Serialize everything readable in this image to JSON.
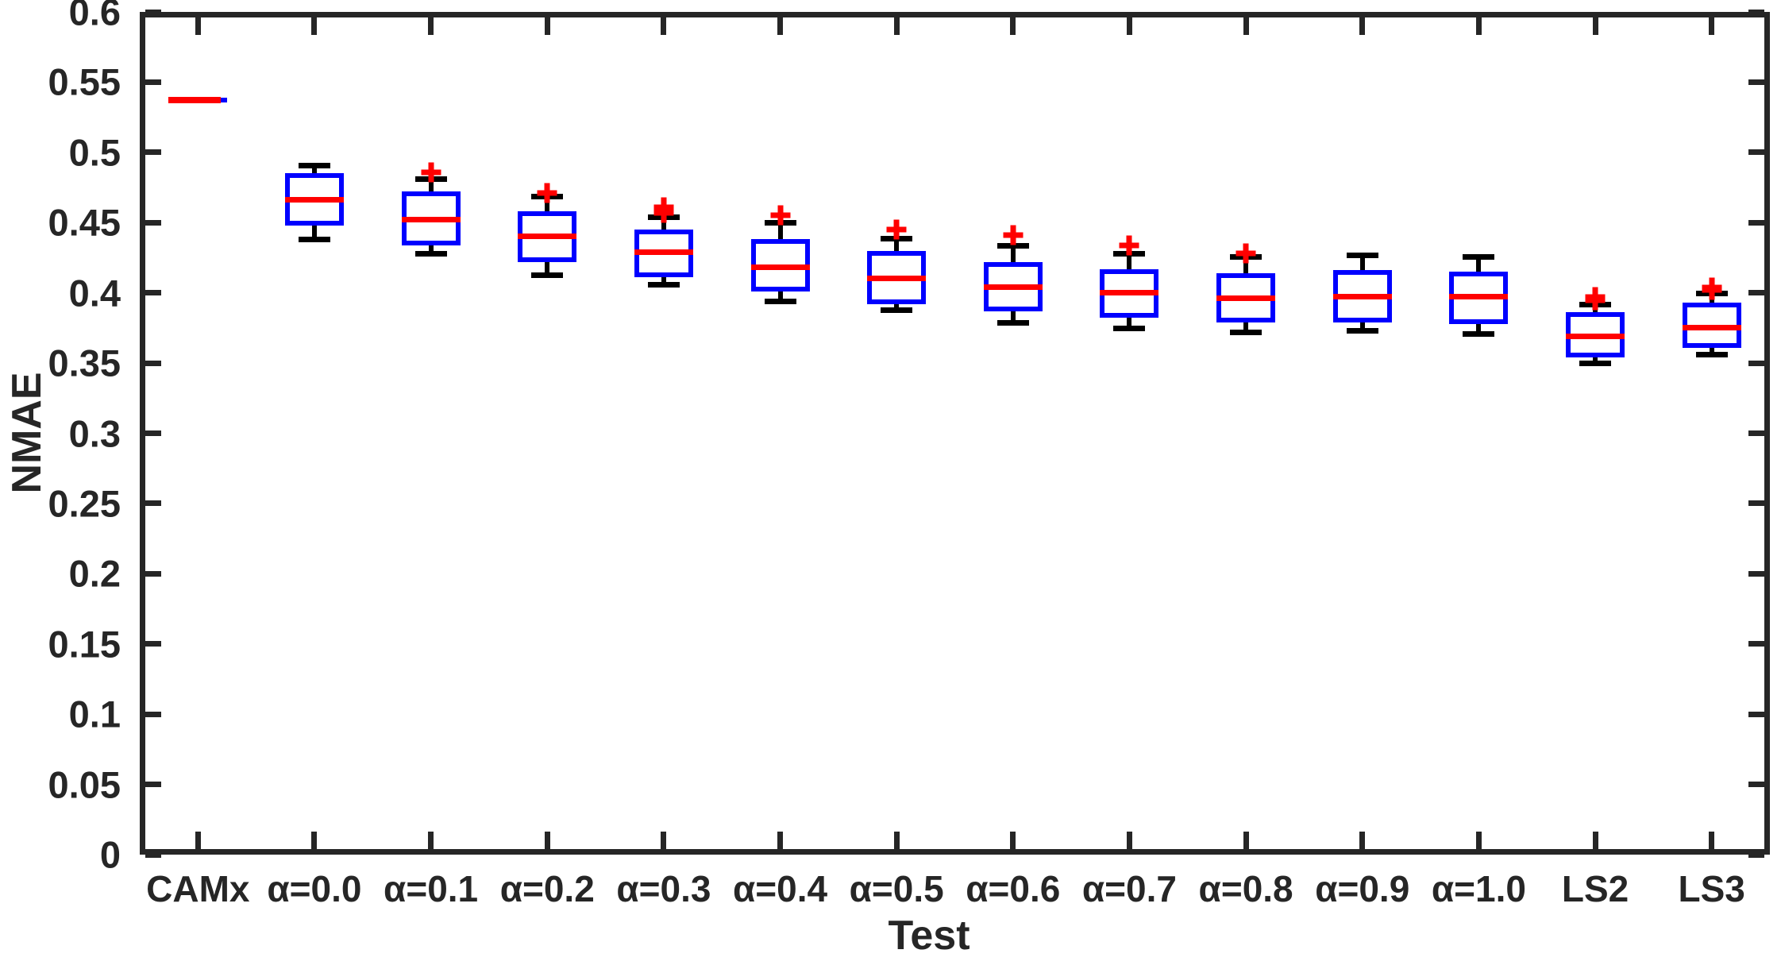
{
  "figure": {
    "ylabel": "NMAE",
    "xlabel": "Test"
  },
  "chart_data": {
    "type": "boxplot",
    "title": "",
    "xlabel": "Test",
    "ylabel": "NMAE",
    "ylim": [
      0,
      0.6
    ],
    "grid": true,
    "legend": false,
    "yticks": [
      0,
      0.05,
      0.1,
      0.15,
      0.2,
      0.25,
      0.3,
      0.35,
      0.4,
      0.45,
      0.5,
      0.55,
      0.6
    ],
    "ytick_labels": [
      "0",
      "0.05",
      "0.1",
      "0.15",
      "0.2",
      "0.25",
      "0.3",
      "0.35",
      "0.4",
      "0.45",
      "0.5",
      "0.55",
      "0.6"
    ],
    "categories": [
      "CAMx",
      "α=0.0",
      "α=0.1",
      "α=0.2",
      "α=0.3",
      "α=0.4",
      "α=0.5",
      "α=0.6",
      "α=0.7",
      "α=0.8",
      "α=0.9",
      "α=1.0",
      "LS2",
      "LS3"
    ],
    "boxes": [
      {
        "label": "CAMx",
        "flat": true,
        "whisker_low": 0.537,
        "q1": 0.537,
        "median": 0.537,
        "q3": 0.537,
        "whisker_high": 0.537,
        "outliers": []
      },
      {
        "label": "α=0.0",
        "flat": false,
        "whisker_low": 0.438,
        "q1": 0.448,
        "median": 0.466,
        "q3": 0.485,
        "whisker_high": 0.491,
        "outliers": []
      },
      {
        "label": "α=0.1",
        "flat": false,
        "whisker_low": 0.428,
        "q1": 0.434,
        "median": 0.452,
        "q3": 0.472,
        "whisker_high": 0.481,
        "outliers": [
          0.486
        ]
      },
      {
        "label": "α=0.2",
        "flat": false,
        "whisker_low": 0.413,
        "q1": 0.422,
        "median": 0.44,
        "q3": 0.458,
        "whisker_high": 0.469,
        "outliers": [
          0.471
        ]
      },
      {
        "label": "α=0.3",
        "flat": false,
        "whisker_low": 0.406,
        "q1": 0.411,
        "median": 0.429,
        "q3": 0.445,
        "whisker_high": 0.454,
        "outliers": [
          0.457,
          0.461
        ]
      },
      {
        "label": "α=0.4",
        "flat": false,
        "whisker_low": 0.394,
        "q1": 0.401,
        "median": 0.418,
        "q3": 0.438,
        "whisker_high": 0.45,
        "outliers": [
          0.455
        ]
      },
      {
        "label": "α=0.5",
        "flat": false,
        "whisker_low": 0.388,
        "q1": 0.392,
        "median": 0.41,
        "q3": 0.43,
        "whisker_high": 0.439,
        "outliers": [
          0.445
        ]
      },
      {
        "label": "α=0.6",
        "flat": false,
        "whisker_low": 0.379,
        "q1": 0.387,
        "median": 0.404,
        "q3": 0.422,
        "whisker_high": 0.434,
        "outliers": [
          0.441
        ]
      },
      {
        "label": "α=0.7",
        "flat": false,
        "whisker_low": 0.375,
        "q1": 0.382,
        "median": 0.4,
        "q3": 0.417,
        "whisker_high": 0.428,
        "outliers": [
          0.434
        ]
      },
      {
        "label": "α=0.8",
        "flat": false,
        "whisker_low": 0.372,
        "q1": 0.379,
        "median": 0.396,
        "q3": 0.414,
        "whisker_high": 0.426,
        "outliers": [
          0.428
        ]
      },
      {
        "label": "α=0.9",
        "flat": false,
        "whisker_low": 0.373,
        "q1": 0.379,
        "median": 0.397,
        "q3": 0.416,
        "whisker_high": 0.427,
        "outliers": []
      },
      {
        "label": "α=1.0",
        "flat": false,
        "whisker_low": 0.371,
        "q1": 0.378,
        "median": 0.397,
        "q3": 0.415,
        "whisker_high": 0.426,
        "outliers": []
      },
      {
        "label": "LS2",
        "flat": false,
        "whisker_low": 0.35,
        "q1": 0.354,
        "median": 0.369,
        "q3": 0.386,
        "whisker_high": 0.392,
        "outliers": [
          0.395,
          0.397
        ]
      },
      {
        "label": "LS3",
        "flat": false,
        "whisker_low": 0.356,
        "q1": 0.361,
        "median": 0.375,
        "q3": 0.393,
        "whisker_high": 0.4,
        "outliers": [
          0.402,
          0.404
        ]
      }
    ],
    "colors": {
      "box": "#0000ff",
      "median": "#ff0000",
      "whisker": "#000000",
      "outlier": "#ff0000",
      "grid": "#d6d6d6",
      "axis": "#262626",
      "background": "#ffffff"
    }
  }
}
